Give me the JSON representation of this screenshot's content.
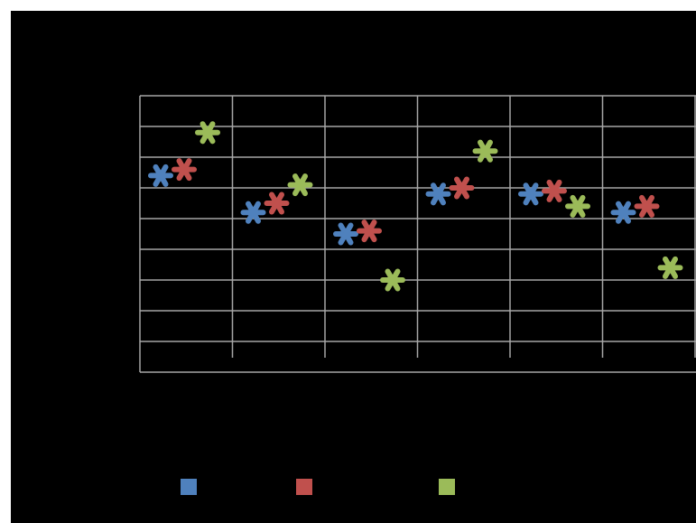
{
  "chart_data": {
    "type": "scatter",
    "title": "",
    "xlabel": "",
    "ylabel": "",
    "categories": [
      "",
      "",
      "",
      "",
      "",
      ""
    ],
    "ylim": [
      0,
      9
    ],
    "y_gridlines": 9,
    "grid": true,
    "marker": "asterisk",
    "legend_position": "bottom",
    "series": [
      {
        "color": "#4F81BD",
        "values": [
          6.4,
          5.2,
          4.5,
          5.8,
          5.8,
          5.2
        ]
      },
      {
        "color": "#C0504D",
        "values": [
          6.6,
          5.5,
          4.6,
          6.0,
          5.9,
          5.4
        ]
      },
      {
        "color": "#9BBB59",
        "values": [
          7.8,
          6.1,
          3.0,
          7.2,
          5.4,
          3.4
        ]
      }
    ]
  }
}
